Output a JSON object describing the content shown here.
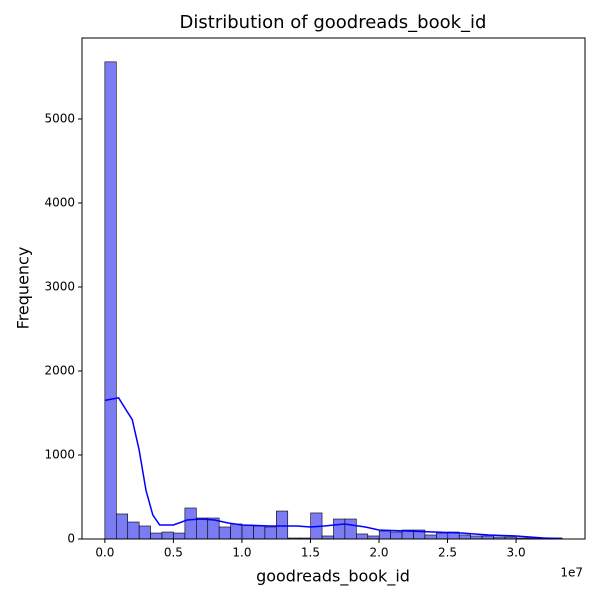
{
  "chart_data": {
    "type": "histogram",
    "title": "Distribution of goodreads_book_id",
    "xlabel": "goodreads_book_id",
    "ylabel": "Frequency",
    "x_offset_label": "1e7",
    "bins": [
      0,
      834000,
      1668000,
      2502000,
      3336000,
      4170000,
      5004000,
      5838000,
      6672000,
      7506000,
      8340000,
      9174000,
      10008000,
      10842000,
      11676000,
      12510000,
      13344000,
      14178000,
      15012000,
      15846000,
      16680000,
      17514000,
      18348000,
      19182000,
      20016000,
      20850000,
      21684000,
      22518000,
      23352000,
      24186000,
      25020000,
      25854000,
      26688000,
      27522000,
      28356000,
      29190000,
      30024000,
      30858000,
      31692000,
      32526000,
      33360000
    ],
    "counts": [
      5680,
      298,
      202,
      155,
      71,
      83,
      71,
      369,
      250,
      250,
      143,
      179,
      167,
      155,
      143,
      333,
      12,
      12,
      310,
      36,
      238,
      238,
      60,
      36,
      95,
      83,
      107,
      107,
      48,
      71,
      83,
      48,
      36,
      36,
      24,
      24,
      12,
      12,
      12,
      12
    ],
    "color": "#7b7bf4",
    "edgecolor": "#000000",
    "kde": {
      "color": "#0000ff",
      "x": [
        0,
        1000000,
        2000000,
        2500000,
        3000000,
        3500000,
        4000000,
        5000000,
        6000000,
        7000000,
        8000000,
        9000000,
        10000000,
        12000000,
        14000000,
        15000000,
        16000000,
        17500000,
        19000000,
        20000000,
        22000000,
        24000000,
        26000000,
        28000000,
        30000000,
        32000000,
        33360000
      ],
      "values": [
        1650,
        1680,
        1420,
        1060,
        580,
        285,
        167,
        167,
        226,
        238,
        226,
        190,
        167,
        155,
        155,
        143,
        155,
        179,
        143,
        107,
        95,
        83,
        71,
        48,
        36,
        12,
        5
      ]
    },
    "xlim": [
      -1668000,
      35030000
    ],
    "ylim": [
      0,
      5964
    ],
    "xticks": [
      {
        "value": 0,
        "label": "0.0"
      },
      {
        "value": 5000000,
        "label": "0.5"
      },
      {
        "value": 10000000,
        "label": "1.0"
      },
      {
        "value": 15000000,
        "label": "1.5"
      },
      {
        "value": 20000000,
        "label": "2.0"
      },
      {
        "value": 25000000,
        "label": "2.5"
      },
      {
        "value": 30000000,
        "label": "3.0"
      }
    ],
    "yticks": [
      0,
      1000,
      2000,
      3000,
      4000,
      5000
    ]
  }
}
